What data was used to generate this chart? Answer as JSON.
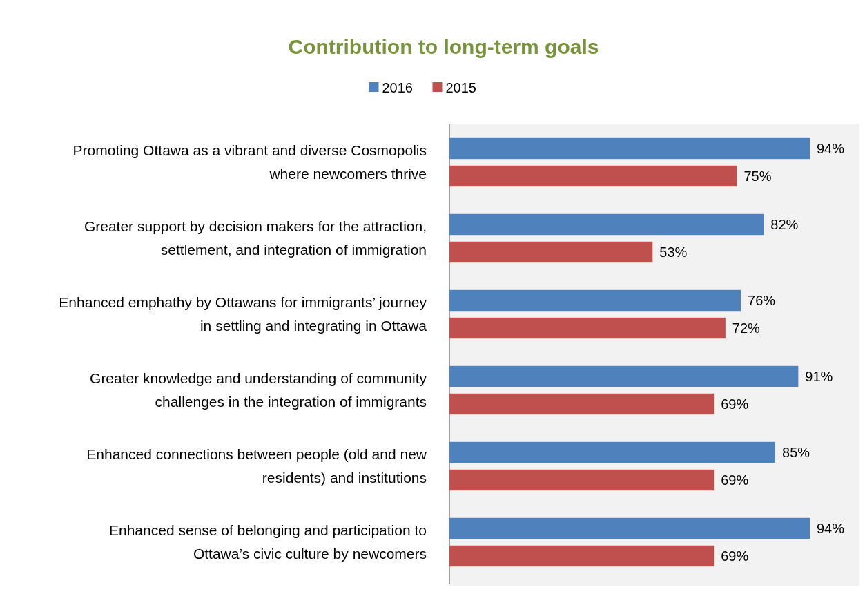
{
  "chart_data": {
    "type": "bar",
    "orientation": "horizontal",
    "title": "Contribution to long-term goals",
    "categories": [
      "Promoting Ottawa as a vibrant and diverse Cosmopolis where newcomers thrive",
      "Greater support by decision makers for the attraction, settlement, and integration of immigration",
      "Enhanced emphathy by Ottawans for immigrants’ journey in settling and integrating in Ottawa",
      "Greater knowledge and understanding of community challenges in the integration of immigrants",
      "Enhanced connections between people (old and new residents) and institutions",
      "Enhanced sense of belonging and participation to Ottawa’s civic culture by newcomers"
    ],
    "series": [
      {
        "name": "2016",
        "color": "#4f81bd",
        "values": [
          94,
          82,
          76,
          91,
          85,
          94
        ],
        "value_labels": [
          "94%",
          "82%",
          "76%",
          "91%",
          "85%",
          "94%"
        ]
      },
      {
        "name": "2015",
        "color": "#c0504d",
        "values": [
          75,
          53,
          72,
          69,
          69,
          69
        ],
        "value_labels": [
          "75%",
          "53%",
          "72%",
          "69%",
          "69%",
          "69%"
        ]
      }
    ],
    "legend": "top"
  }
}
